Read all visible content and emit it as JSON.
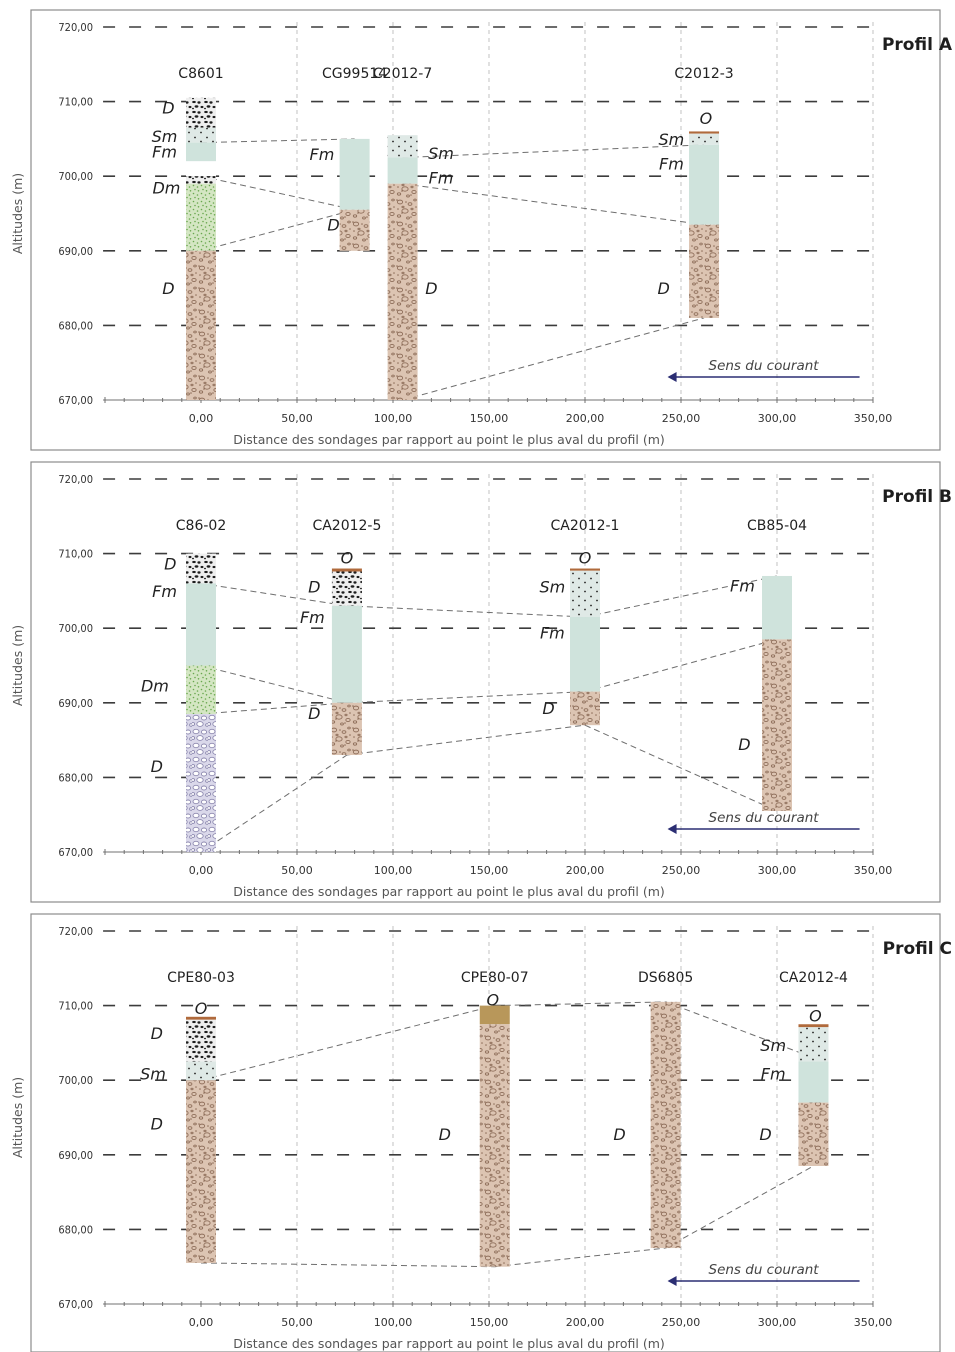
{
  "x_axis_title": "Distance des sondages par rapport au point le plus aval du profil (m)",
  "y_axis_title": "Altitudes (m)",
  "y_ticks": [
    "670,00",
    "680,00",
    "690,00",
    "700,00",
    "710,00",
    "720,00"
  ],
  "x_ticks": [
    "0,00",
    "50,00",
    "100,00",
    "150,00",
    "200,00",
    "250,00",
    "300,00",
    "350,00"
  ],
  "current_label": "Sens du courant",
  "colors": {
    "fm": "#cfe3dc",
    "sm": "#dfe9e6",
    "dm_base": "#d4e6c3",
    "dm_dot": "#6aa84f",
    "d_base": "#dcc4b2",
    "d_pebble": "#8e6e5a",
    "d_coarse": "#efefef",
    "d_coarse_pebble": "#1e1e1e",
    "d_pale": "#dad8ea",
    "d_pale_pebble": "#8e8ab0",
    "o": "#b8975a",
    "o_line": "#9c7a3c"
  },
  "panels": [
    {
      "title": "Profil A",
      "boreholes": [
        {
          "name": "C8601",
          "x": 0,
          "top": 710.5,
          "bottom": 670,
          "layers": [
            {
              "from": 710.5,
              "to": 706.5,
              "type": "d_coarse"
            },
            {
              "from": 706.5,
              "to": 704.5,
              "type": "sm"
            },
            {
              "from": 704.5,
              "to": 702,
              "type": "fm"
            },
            {
              "from": 702,
              "to": 700,
              "type": "blank"
            },
            {
              "from": 700,
              "to": 699,
              "type": "d_coarse"
            },
            {
              "from": 699,
              "to": 690,
              "type": "dm"
            },
            {
              "from": 690,
              "to": 670,
              "type": "d"
            }
          ]
        },
        {
          "name": "CG99514",
          "x": 80,
          "top": 705,
          "bottom": 690,
          "layers": [
            {
              "from": 705,
              "to": 695.5,
              "type": "fm"
            },
            {
              "from": 695.5,
              "to": 690,
              "type": "d"
            }
          ]
        },
        {
          "name": "C2012-7",
          "x": 105,
          "top": 705.5,
          "bottom": 670,
          "layers": [
            {
              "from": 705.5,
              "to": 702.5,
              "type": "sm"
            },
            {
              "from": 702.5,
              "to": 699,
              "type": "fm"
            },
            {
              "from": 699,
              "to": 670,
              "type": "d"
            }
          ]
        },
        {
          "name": "C2012-3",
          "x": 262,
          "top": 706,
          "bottom": 681,
          "layers": [
            {
              "from": 706,
              "to": 705.7,
              "type": "o_line"
            },
            {
              "from": 705.7,
              "to": 704.2,
              "type": "sm"
            },
            {
              "from": 704.2,
              "to": 693.5,
              "type": "fm"
            },
            {
              "from": 693.5,
              "to": 681,
              "type": "d"
            }
          ]
        }
      ],
      "units": [
        {
          "label": "D",
          "x": -17,
          "y": 709.2
        },
        {
          "label": "Sm",
          "x": -19,
          "y": 705.4
        },
        {
          "label": "Fm",
          "x": -19,
          "y": 703.3
        },
        {
          "label": "Dm",
          "x": -18,
          "y": 698.5
        },
        {
          "label": "D",
          "x": -17,
          "y": 685
        },
        {
          "label": "Fm",
          "x": 63,
          "y": 703
        },
        {
          "label": "D",
          "x": 69,
          "y": 693.5
        },
        {
          "label": "Sm",
          "x": 125,
          "y": 703.1
        },
        {
          "label": "Fm",
          "x": 125,
          "y": 699.8
        },
        {
          "label": "D",
          "x": 120,
          "y": 685
        },
        {
          "label": "O",
          "x": 263,
          "y": 707.8
        },
        {
          "label": "Sm",
          "x": 245,
          "y": 705
        },
        {
          "label": "Fm",
          "x": 245,
          "y": 701.7
        },
        {
          "label": "D",
          "x": 241,
          "y": 685
        }
      ],
      "correlations": [
        [
          [
            0,
            704.5
          ],
          [
            80,
            705
          ]
        ],
        [
          [
            0,
            700
          ],
          [
            80,
            695.5
          ]
        ],
        [
          [
            0,
            690
          ],
          [
            80,
            695.5
          ]
        ],
        [
          [
            105,
            702.5
          ],
          [
            262,
            704.2
          ]
        ],
        [
          [
            105,
            699
          ],
          [
            262,
            693.5
          ]
        ],
        [
          [
            105,
            670
          ],
          [
            262,
            681
          ]
        ]
      ]
    },
    {
      "title": "Profil B",
      "boreholes": [
        {
          "name": "C86-02",
          "x": 0,
          "top": 710,
          "bottom": 670,
          "layers": [
            {
              "from": 710,
              "to": 706,
              "type": "d_coarse"
            },
            {
              "from": 706,
              "to": 695,
              "type": "fm"
            },
            {
              "from": 695,
              "to": 688.5,
              "type": "dm"
            },
            {
              "from": 688.5,
              "to": 670,
              "type": "d_pale"
            }
          ]
        },
        {
          "name": "CA2012-5",
          "x": 76,
          "top": 708,
          "bottom": 683,
          "layers": [
            {
              "from": 708,
              "to": 707.6,
              "type": "o_line"
            },
            {
              "from": 707.6,
              "to": 703,
              "type": "d_coarse"
            },
            {
              "from": 703,
              "to": 690,
              "type": "fm"
            },
            {
              "from": 690,
              "to": 683,
              "type": "d"
            }
          ]
        },
        {
          "name": "CA2012-1",
          "x": 200,
          "top": 708,
          "bottom": 687,
          "layers": [
            {
              "from": 708,
              "to": 707.7,
              "type": "o_line"
            },
            {
              "from": 707.7,
              "to": 701.5,
              "type": "sm"
            },
            {
              "from": 701.5,
              "to": 691.5,
              "type": "fm"
            },
            {
              "from": 691.5,
              "to": 687,
              "type": "d"
            }
          ]
        },
        {
          "name": "CB85-04",
          "x": 300,
          "top": 707,
          "bottom": 675.5,
          "layers": [
            {
              "from": 707,
              "to": 698.5,
              "type": "fm"
            },
            {
              "from": 698.5,
              "to": 675.5,
              "type": "d"
            }
          ]
        }
      ],
      "units": [
        {
          "label": "D",
          "x": -16,
          "y": 708.7
        },
        {
          "label": "Fm",
          "x": -19,
          "y": 705
        },
        {
          "label": "Dm",
          "x": -24,
          "y": 692.3
        },
        {
          "label": "D",
          "x": -23,
          "y": 681.5
        },
        {
          "label": "O",
          "x": 76,
          "y": 709.5
        },
        {
          "label": "D",
          "x": 59,
          "y": 705.6
        },
        {
          "label": "Fm",
          "x": 58,
          "y": 701.5
        },
        {
          "label": "D",
          "x": 59,
          "y": 688.6
        },
        {
          "label": "O",
          "x": 200,
          "y": 709.5
        },
        {
          "label": "Sm",
          "x": 183,
          "y": 705.6
        },
        {
          "label": "Fm",
          "x": 183,
          "y": 699.4
        },
        {
          "label": "D",
          "x": 181,
          "y": 689.3
        },
        {
          "label": "Fm",
          "x": 282,
          "y": 705.7
        },
        {
          "label": "D",
          "x": 283,
          "y": 684.5
        }
      ],
      "correlations": [
        [
          [
            0,
            706
          ],
          [
            76,
            703
          ]
        ],
        [
          [
            0,
            695
          ],
          [
            76,
            690
          ]
        ],
        [
          [
            0,
            688.5
          ],
          [
            76,
            690
          ]
        ],
        [
          [
            0,
            670
          ],
          [
            76,
            683
          ]
        ],
        [
          [
            76,
            703
          ],
          [
            200,
            701.5
          ]
        ],
        [
          [
            76,
            690
          ],
          [
            200,
            691.5
          ]
        ],
        [
          [
            76,
            683
          ],
          [
            200,
            687
          ]
        ],
        [
          [
            200,
            701.5
          ],
          [
            300,
            707
          ]
        ],
        [
          [
            200,
            691.5
          ],
          [
            300,
            698.5
          ]
        ],
        [
          [
            200,
            687
          ],
          [
            300,
            675.5
          ]
        ]
      ]
    },
    {
      "title": "Profil C",
      "boreholes": [
        {
          "name": "CPE80-03",
          "x": 0,
          "top": 708.5,
          "bottom": 675.5,
          "layers": [
            {
              "from": 708.5,
              "to": 708.1,
              "type": "o_line"
            },
            {
              "from": 708.1,
              "to": 702.5,
              "type": "d_coarse"
            },
            {
              "from": 702.5,
              "to": 700,
              "type": "sm"
            },
            {
              "from": 700,
              "to": 675.5,
              "type": "d"
            }
          ]
        },
        {
          "name": "CPE80-07",
          "x": 153,
          "top": 710,
          "bottom": 675,
          "layers": [
            {
              "from": 710,
              "to": 707.5,
              "type": "o"
            },
            {
              "from": 707.5,
              "to": 675,
              "type": "d"
            }
          ]
        },
        {
          "name": "DS6805",
          "x": 242,
          "top": 710.5,
          "bottom": 677.5,
          "layers": [
            {
              "from": 710.5,
              "to": 677.5,
              "type": "d"
            }
          ]
        },
        {
          "name": "CA2012-4",
          "x": 319,
          "top": 707.5,
          "bottom": 688.5,
          "layers": [
            {
              "from": 707.5,
              "to": 707.1,
              "type": "o_line"
            },
            {
              "from": 707.1,
              "to": 702.5,
              "type": "sm"
            },
            {
              "from": 702.5,
              "to": 697,
              "type": "fm"
            },
            {
              "from": 697,
              "to": 688.5,
              "type": "d"
            }
          ]
        }
      ],
      "units": [
        {
          "label": "O",
          "x": 0,
          "y": 709.7
        },
        {
          "label": "D",
          "x": -23,
          "y": 706.3
        },
        {
          "label": "Sm",
          "x": -25,
          "y": 700.9
        },
        {
          "label": "D",
          "x": -23,
          "y": 694.2
        },
        {
          "label": "D",
          "x": 127,
          "y": 692.8
        },
        {
          "label": "O",
          "x": 152,
          "y": 710.8
        },
        {
          "label": "D",
          "x": 218,
          "y": 692.8
        },
        {
          "label": "O",
          "x": 320,
          "y": 708.7
        },
        {
          "label": "Sm",
          "x": 298,
          "y": 704.7
        },
        {
          "label": "Fm",
          "x": 298,
          "y": 700.9
        },
        {
          "label": "D",
          "x": 294,
          "y": 692.8
        }
      ],
      "correlations": [
        [
          [
            0,
            700
          ],
          [
            153,
            710
          ]
        ],
        [
          [
            153,
            710
          ],
          [
            242,
            710.5
          ]
        ],
        [
          [
            242,
            710.5
          ],
          [
            319,
            703
          ]
        ],
        [
          [
            0,
            675.5
          ],
          [
            153,
            675
          ]
        ],
        [
          [
            153,
            675
          ],
          [
            242,
            677.5
          ]
        ],
        [
          [
            242,
            677.5
          ],
          [
            319,
            688.5
          ]
        ]
      ]
    }
  ]
}
